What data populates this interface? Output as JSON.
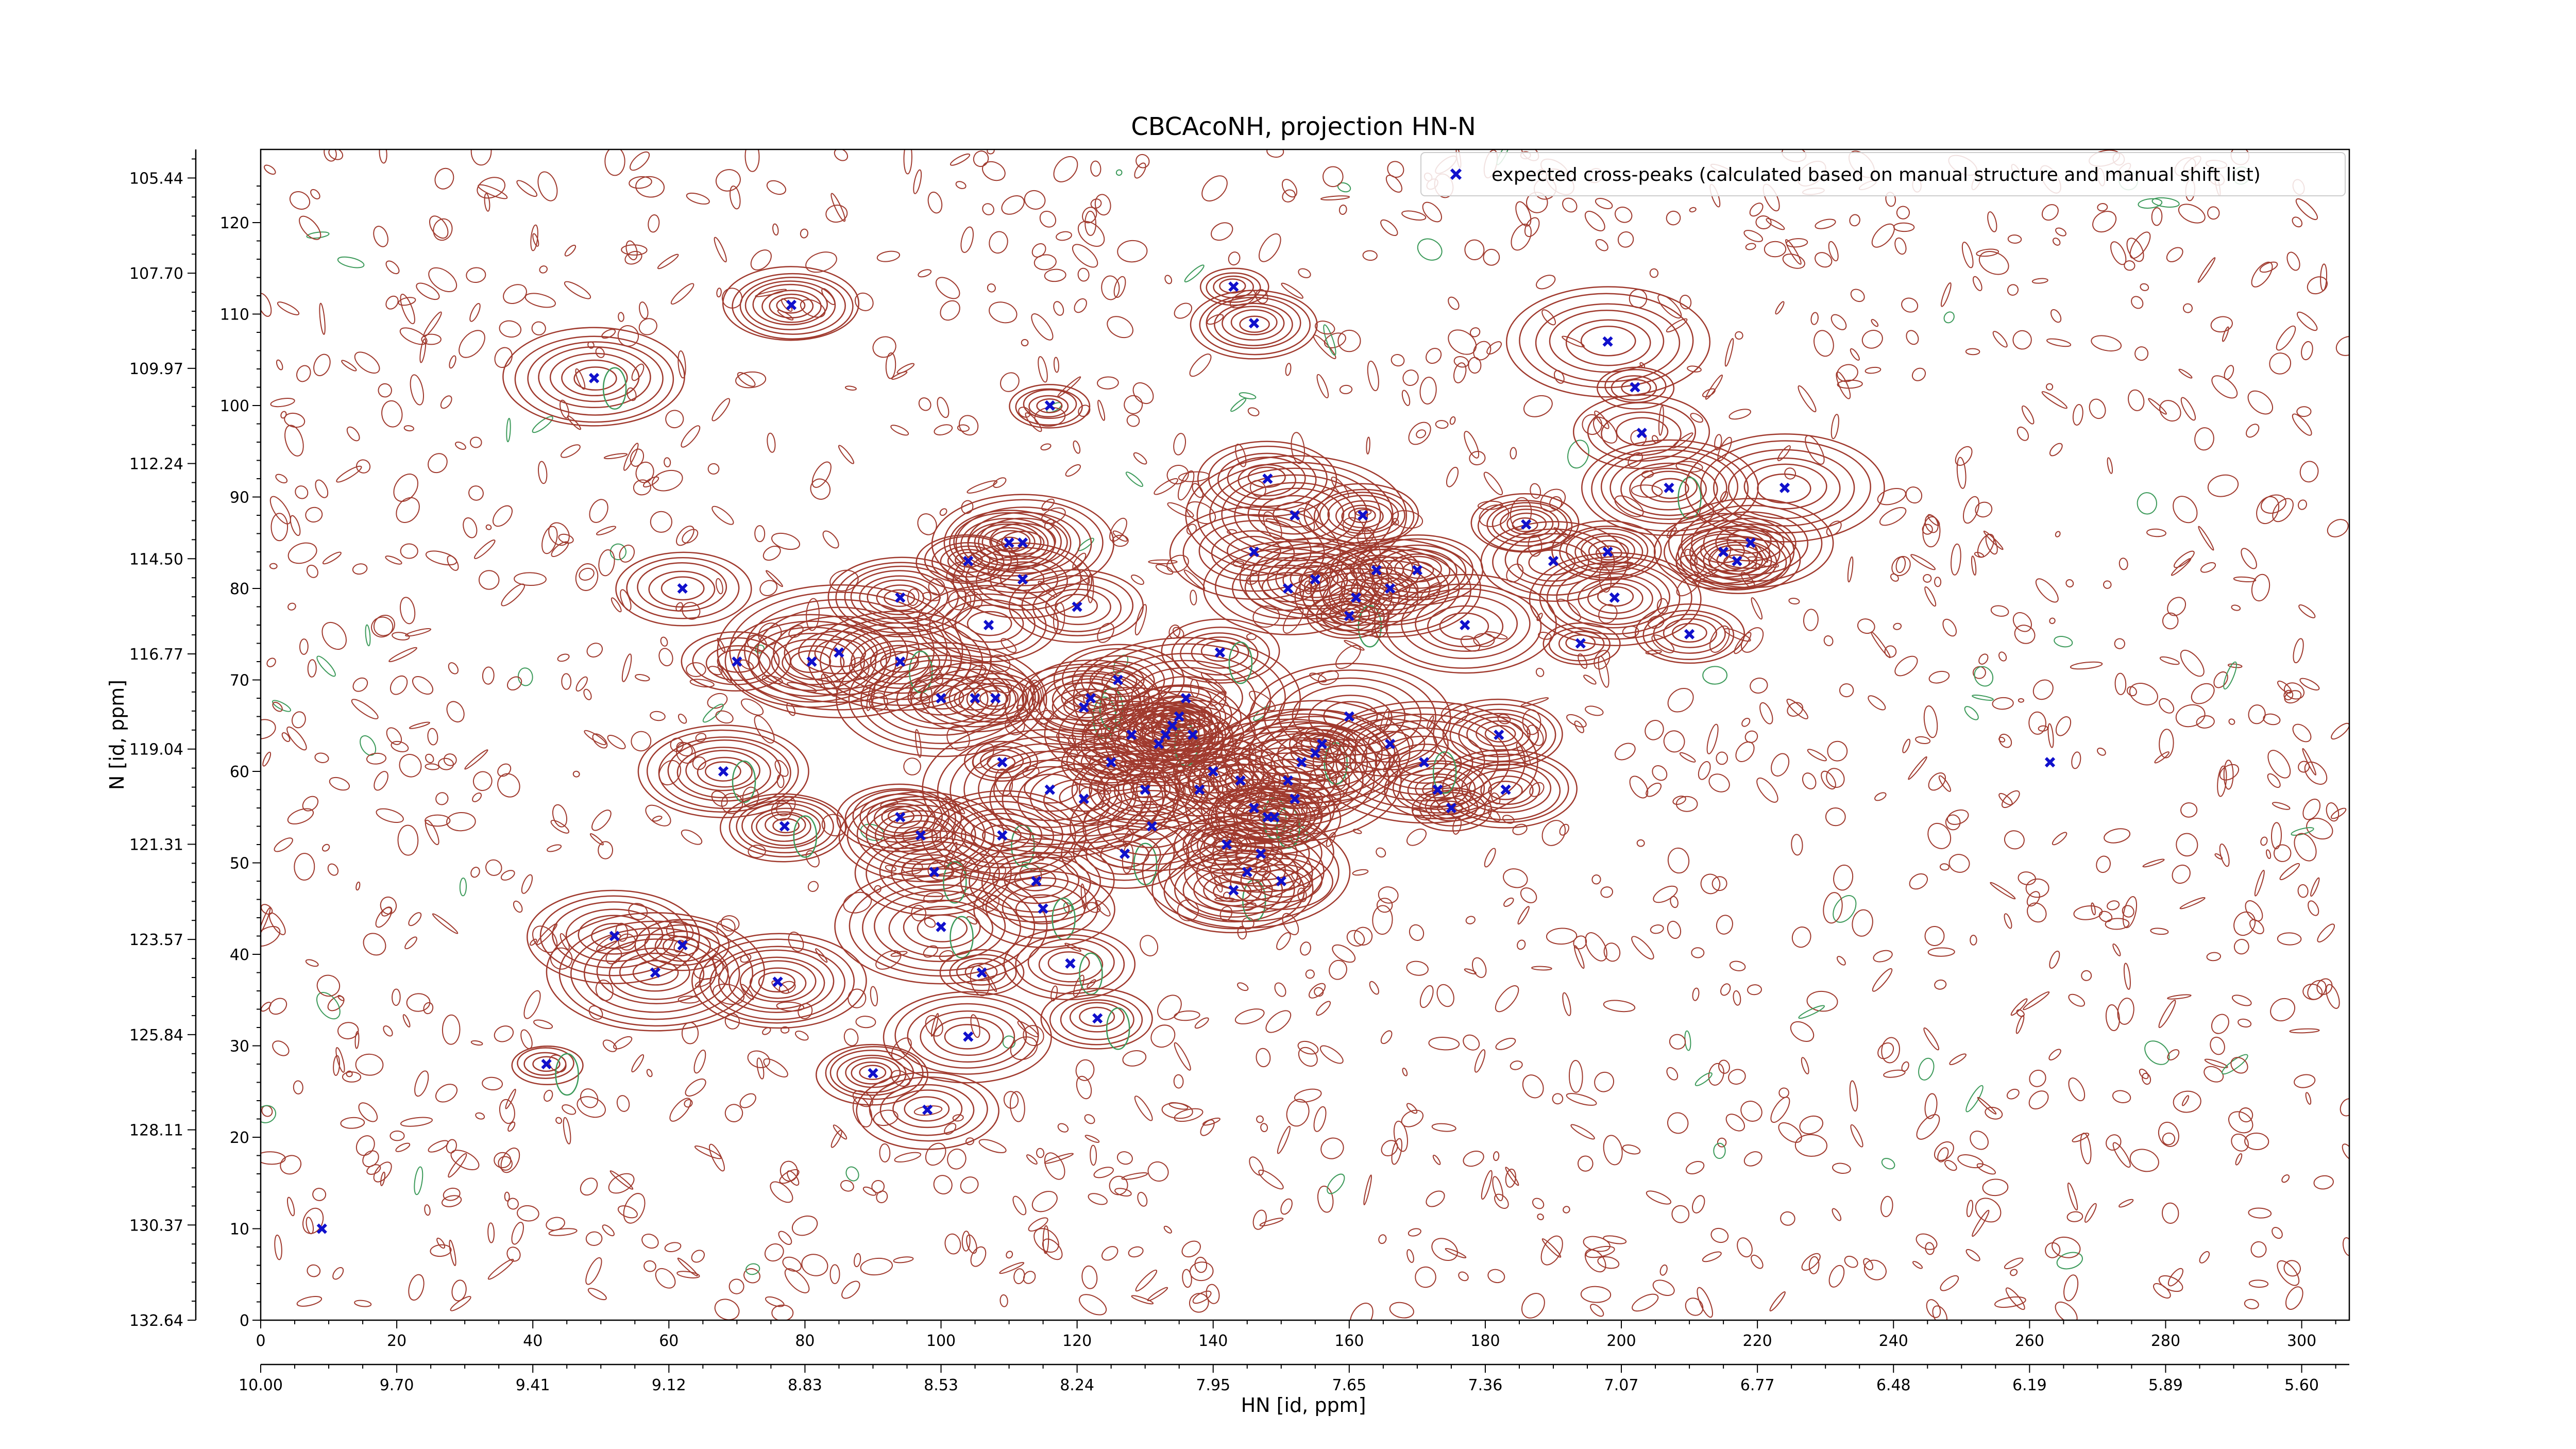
{
  "chart_data": {
    "type": "scatter",
    "title": "CBCAcoNH, projection HN-N",
    "xlabel": "HN [id, ppm]",
    "ylabel": "N [id, ppm]",
    "x_index_range": [
      0,
      307
    ],
    "y_index_range": [
      0,
      128
    ],
    "x_index_ticks": [
      "0",
      "20",
      "40",
      "60",
      "80",
      "100",
      "120",
      "140",
      "160",
      "180",
      "200",
      "220",
      "240",
      "260",
      "280",
      "300"
    ],
    "y_index_ticks": [
      "0",
      "10",
      "20",
      "30",
      "40",
      "50",
      "60",
      "70",
      "80",
      "90",
      "100",
      "110",
      "120"
    ],
    "x_ppm_ticks": [
      "10.00",
      "9.70",
      "9.41",
      "9.12",
      "8.83",
      "8.53",
      "8.24",
      "7.95",
      "7.65",
      "7.36",
      "7.07",
      "6.77",
      "6.48",
      "6.19",
      "5.89",
      "5.60"
    ],
    "y_ppm_ticks": [
      "132.64",
      "130.37",
      "128.11",
      "125.84",
      "123.57",
      "121.31",
      "119.04",
      "116.77",
      "114.50",
      "112.24",
      "109.97",
      "107.70",
      "105.44"
    ],
    "grid": false,
    "legend_position": "top-right",
    "colors": {
      "peak_marker": "#1010cc",
      "positive_contour": "#a03a2e",
      "negative_contour": "#3c9a5a"
    },
    "series": [
      {
        "name": "expected cross-peaks (calculated based on manual structure and manual shift list)",
        "marker": "x",
        "points": [
          [
            9,
            10
          ],
          [
            42,
            28
          ],
          [
            49,
            103
          ],
          [
            52,
            42
          ],
          [
            58,
            38
          ],
          [
            62,
            41
          ],
          [
            62,
            80
          ],
          [
            68,
            60
          ],
          [
            70,
            72
          ],
          [
            76,
            37
          ],
          [
            77,
            54
          ],
          [
            78,
            111
          ],
          [
            81,
            72
          ],
          [
            85,
            73
          ],
          [
            90,
            27
          ],
          [
            94,
            72
          ],
          [
            94,
            79
          ],
          [
            94,
            55
          ],
          [
            97,
            53
          ],
          [
            98,
            23
          ],
          [
            99,
            49
          ],
          [
            100,
            43
          ],
          [
            100,
            68
          ],
          [
            104,
            31
          ],
          [
            104,
            83
          ],
          [
            105,
            68
          ],
          [
            106,
            38
          ],
          [
            107,
            76
          ],
          [
            108,
            68
          ],
          [
            109,
            53
          ],
          [
            109,
            61
          ],
          [
            110,
            85
          ],
          [
            112,
            85
          ],
          [
            112,
            81
          ],
          [
            114,
            48
          ],
          [
            115,
            45
          ],
          [
            116,
            100
          ],
          [
            116,
            58
          ],
          [
            119,
            39
          ],
          [
            120,
            78
          ],
          [
            121,
            67
          ],
          [
            121,
            57
          ],
          [
            122,
            68
          ],
          [
            123,
            33
          ],
          [
            125,
            61
          ],
          [
            126,
            70
          ],
          [
            127,
            51
          ],
          [
            128,
            64
          ],
          [
            130,
            58
          ],
          [
            131,
            54
          ],
          [
            132,
            63
          ],
          [
            133,
            64
          ],
          [
            134,
            65
          ],
          [
            135,
            66
          ],
          [
            136,
            68
          ],
          [
            137,
            64
          ],
          [
            138,
            58
          ],
          [
            140,
            60
          ],
          [
            141,
            73
          ],
          [
            142,
            52
          ],
          [
            143,
            47
          ],
          [
            144,
            59
          ],
          [
            145,
            49
          ],
          [
            146,
            56
          ],
          [
            147,
            51
          ],
          [
            148,
            55
          ],
          [
            149,
            55
          ],
          [
            150,
            48
          ],
          [
            151,
            59
          ],
          [
            152,
            57
          ],
          [
            153,
            61
          ],
          [
            155,
            62
          ],
          [
            156,
            63
          ],
          [
            146,
            84
          ],
          [
            148,
            92
          ],
          [
            151,
            80
          ],
          [
            155,
            81
          ],
          [
            160,
            77
          ],
          [
            161,
            79
          ],
          [
            162,
            88
          ],
          [
            164,
            82
          ],
          [
            166,
            80
          ],
          [
            170,
            82
          ],
          [
            173,
            58
          ],
          [
            175,
            56
          ],
          [
            177,
            76
          ],
          [
            182,
            64
          ],
          [
            183,
            58
          ],
          [
            186,
            87
          ],
          [
            190,
            83
          ],
          [
            194,
            74
          ],
          [
            198,
            84
          ],
          [
            199,
            79
          ],
          [
            198,
            107
          ],
          [
            202,
            102
          ],
          [
            203,
            97
          ],
          [
            207,
            91
          ],
          [
            210,
            75
          ],
          [
            215,
            84
          ],
          [
            217,
            83
          ],
          [
            219,
            85
          ],
          [
            224,
            91
          ],
          [
            263,
            61
          ],
          [
            143,
            113
          ],
          [
            146,
            109
          ],
          [
            152,
            88
          ],
          [
            171,
            61
          ],
          [
            166,
            63
          ],
          [
            160,
            66
          ]
        ]
      }
    ]
  }
}
